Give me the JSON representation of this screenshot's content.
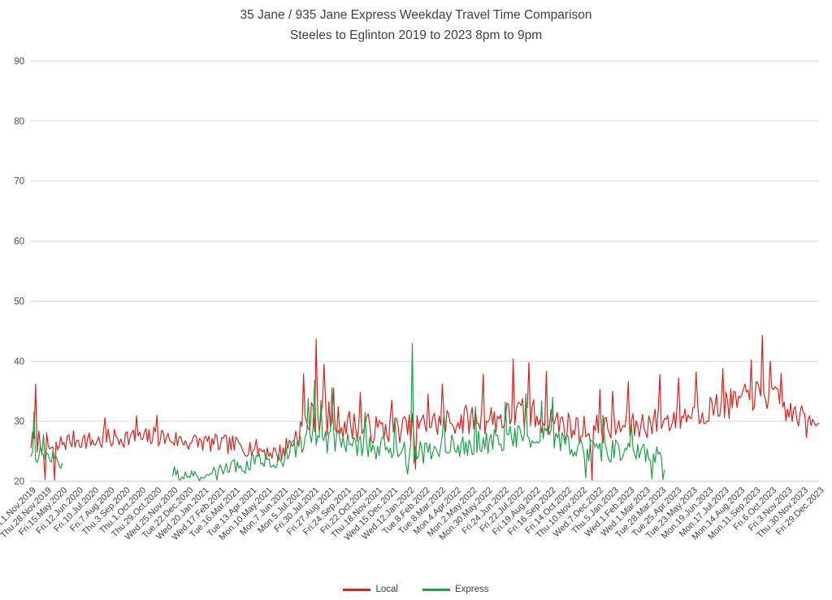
{
  "chart_data": {
    "type": "line",
    "title_line1": "35 Jane / 935 Jane Express Weekday Travel Time Comparison",
    "title_line2": "Steeles to Eglinton 2019 to 2023 8pm to 9pm",
    "xlabel": "",
    "ylabel": "",
    "grid": true,
    "y_axis": {
      "min": 20,
      "max": 90,
      "tick_step": 10,
      "ticks": [
        90,
        80,
        70,
        60,
        50,
        40,
        30,
        20
      ]
    },
    "x_axis": {
      "total_categories": 1000,
      "categories_per_tick": 20,
      "tick_labels": [
        "Fri.1.Nov.2019",
        "Thu.28.Nov.2019",
        "Fri.15.May.2020",
        "Fri.12.Jun.2020",
        "Fri.10.Jul.2020",
        "Fri.7.Aug.2020",
        "Thu.3.Sep.2020",
        "Thu.1.Oct.2020",
        "Thu.29.Oct.2020",
        "Wed.25.Nov.2020",
        "Tue.22.Dec.2020",
        "Wed.20.Jan.2021",
        "Wed.17.Feb.2021",
        "Tue.16.Mar.2021",
        "Tue.13.Apr.2021",
        "Mon.10.May.2021",
        "Mon.7.Jun.2021",
        "Mon.5.Jul.2021",
        "Fri.30.Jul.2021",
        "Fri.27.Aug.2021",
        "Fri.24.Sep.2021",
        "Fri.22.Oct.2021",
        "Thu.18.Nov.2021",
        "Wed.15.Dec.2021",
        "Wed.12.Jan.2022",
        "Tue.8.Feb.2022",
        "Tue.8.Mar.2022",
        "Mon.4.Apr.2022",
        "Mon.2.May.2022",
        "Mon.30.May.2022",
        "Fri.24.Jun.2022",
        "Fri.22.Jul.2022",
        "Fri.19.Aug.2022",
        "Fri.16.Sep.2022",
        "Fri.14.Oct.2022",
        "Thu.10.Nov.2022",
        "Wed.7.Dec.2022",
        "Thu.5.Jan.2023",
        "Wed.1.Feb.2023",
        "Wed.1.Mar.2023",
        "Tue.28.Mar.2023",
        "Tue.25.Apr.2023",
        "Tue.23.May.2023",
        "Mon.19.Jun.2023",
        "Mon.17.Jul.2023",
        "Mon.14.Aug.2023",
        "Mon.11.Sep.2023",
        "Fri.6.Oct.2023",
        "Fri.3.Nov.2023",
        "Thu.30.Nov.2023",
        "Fri.29.Dec.2023"
      ]
    },
    "legend": {
      "position": "bottom",
      "items": [
        {
          "label": "Local",
          "color": "#e3201b"
        },
        {
          "label": "Express",
          "color": "#19a448"
        }
      ]
    },
    "series": [
      {
        "name": "Local",
        "color": "#e3201b",
        "seed": 7,
        "step": 2,
        "segments": [
          {
            "range": [
              0,
              1000
            ],
            "anchors": [
              [
                0,
                26.5,
                1.8
              ],
              [
                10,
                26.8,
                2.2
              ],
              [
                20,
                26.0,
                2.2
              ],
              [
                30,
                25.0,
                2.4
              ],
              [
                40,
                26.5,
                1.6
              ],
              [
                60,
                27.0,
                1.6
              ],
              [
                80,
                26.6,
                1.6
              ],
              [
                100,
                27.0,
                1.8
              ],
              [
                120,
                27.4,
                1.7
              ],
              [
                140,
                27.0,
                1.8
              ],
              [
                160,
                27.5,
                1.8
              ],
              [
                180,
                27.0,
                1.6
              ],
              [
                200,
                26.6,
                1.6
              ],
              [
                220,
                26.5,
                1.6
              ],
              [
                240,
                26.2,
                1.6
              ],
              [
                260,
                26.0,
                1.6
              ],
              [
                280,
                25.6,
                1.6
              ],
              [
                300,
                25.0,
                1.6
              ],
              [
                315,
                24.6,
                1.6
              ],
              [
                330,
                26.5,
                2.2
              ],
              [
                345,
                29.0,
                2.6
              ],
              [
                360,
                31.0,
                3.0
              ],
              [
                380,
                30.4,
                2.8
              ],
              [
                400,
                29.6,
                2.6
              ],
              [
                420,
                29.0,
                2.6
              ],
              [
                440,
                28.6,
                2.4
              ],
              [
                460,
                28.8,
                2.4
              ],
              [
                480,
                28.8,
                2.4
              ],
              [
                500,
                29.4,
                2.5
              ],
              [
                520,
                29.8,
                2.5
              ],
              [
                540,
                30.0,
                2.5
              ],
              [
                560,
                30.4,
                2.6
              ],
              [
                580,
                30.4,
                2.6
              ],
              [
                600,
                30.6,
                2.8
              ],
              [
                620,
                31.0,
                3.0
              ],
              [
                640,
                31.0,
                3.0
              ],
              [
                660,
                30.4,
                2.8
              ],
              [
                680,
                29.2,
                2.6
              ],
              [
                700,
                28.6,
                2.5
              ],
              [
                720,
                28.6,
                2.5
              ],
              [
                740,
                29.0,
                2.5
              ],
              [
                760,
                29.0,
                2.5
              ],
              [
                780,
                29.6,
                2.5
              ],
              [
                800,
                30.0,
                2.5
              ],
              [
                820,
                30.6,
                2.5
              ],
              [
                840,
                31.4,
                2.5
              ],
              [
                860,
                32.0,
                2.5
              ],
              [
                880,
                32.6,
                2.5
              ],
              [
                900,
                33.4,
                2.5
              ],
              [
                920,
                34.4,
                2.6
              ],
              [
                940,
                34.0,
                2.6
              ],
              [
                960,
                31.6,
                2.2
              ],
              [
                980,
                30.6,
                1.9
              ],
              [
                1000,
                30.4,
                1.6
              ]
            ],
            "spikes": [
              [
                6,
                36.2
              ],
              [
                18,
                20.3
              ],
              [
                30,
                20.2
              ],
              [
                95,
                30.6
              ],
              [
                135,
                30.9
              ],
              [
                160,
                31.0
              ],
              [
                347,
                37.9
              ],
              [
                363,
                43.7
              ],
              [
                372,
                39.5
              ],
              [
                385,
                35.5
              ],
              [
                418,
                34.8
              ],
              [
                458,
                33.5
              ],
              [
                488,
                22.0
              ],
              [
                505,
                34.5
              ],
              [
                522,
                36.2
              ],
              [
                575,
                37.8
              ],
              [
                612,
                40.4
              ],
              [
                632,
                39.8
              ],
              [
                655,
                38.3
              ],
              [
                712,
                20.2
              ],
              [
                722,
                35.3
              ],
              [
                738,
                35.0
              ],
              [
                758,
                36.6
              ],
              [
                798,
                37.8
              ],
              [
                822,
                37.2
              ],
              [
                845,
                38.2
              ],
              [
                878,
                38.8
              ],
              [
                915,
                40.2
              ],
              [
                928,
                44.3
              ],
              [
                938,
                40.0
              ],
              [
                952,
                38.0
              ],
              [
                985,
                27.3
              ]
            ]
          }
        ]
      },
      {
        "name": "Express",
        "color": "#19a448",
        "seed": 13,
        "step": 2,
        "segments": [
          {
            "range": [
              0,
              40
            ],
            "anchors": [
              [
                0,
                25.0,
                1.6
              ],
              [
                12,
                24.4,
                1.6
              ],
              [
                24,
                24.0,
                1.5
              ],
              [
                40,
                23.0,
                1.5
              ]
            ],
            "spikes": [
              [
                4,
                31.6
              ],
              [
                16,
                27.8
              ]
            ]
          },
          {
            "range": [
              180,
              805
            ],
            "anchors": [
              [
                180,
                21.4,
                1.1
              ],
              [
                200,
                21.0,
                0.9
              ],
              [
                220,
                21.0,
                0.9
              ],
              [
                240,
                21.6,
                1.2
              ],
              [
                260,
                22.4,
                1.4
              ],
              [
                280,
                23.0,
                1.5
              ],
              [
                300,
                23.4,
                1.5
              ],
              [
                320,
                24.0,
                1.6
              ],
              [
                340,
                25.8,
                2.0
              ],
              [
                360,
                27.4,
                2.4
              ],
              [
                380,
                27.0,
                2.4
              ],
              [
                400,
                26.2,
                2.0
              ],
              [
                420,
                26.0,
                2.0
              ],
              [
                440,
                25.6,
                2.0
              ],
              [
                460,
                25.6,
                2.0
              ],
              [
                480,
                24.2,
                2.0
              ],
              [
                500,
                25.0,
                2.0
              ],
              [
                520,
                25.6,
                2.0
              ],
              [
                540,
                26.0,
                2.0
              ],
              [
                560,
                26.4,
                2.0
              ],
              [
                580,
                26.5,
                2.0
              ],
              [
                600,
                27.0,
                2.0
              ],
              [
                620,
                27.4,
                2.0
              ],
              [
                640,
                27.5,
                2.1
              ],
              [
                660,
                27.4,
                2.1
              ],
              [
                680,
                26.2,
                2.0
              ],
              [
                700,
                25.0,
                2.0
              ],
              [
                720,
                25.4,
                2.0
              ],
              [
                740,
                25.0,
                2.0
              ],
              [
                760,
                25.0,
                2.0
              ],
              [
                780,
                24.4,
                2.1
              ],
              [
                805,
                24.0,
                2.3
              ]
            ],
            "spikes": [
              [
                188,
                20.2
              ],
              [
                214,
                20.1
              ],
              [
                236,
                20.2
              ],
              [
                352,
                33.8
              ],
              [
                360,
                36.8
              ],
              [
                368,
                33.5
              ],
              [
                383,
                35.6
              ],
              [
                425,
                31.5
              ],
              [
                462,
                30.3
              ],
              [
                478,
                21.2
              ],
              [
                485,
                43.0
              ],
              [
                524,
                31.2
              ],
              [
                565,
                32.4
              ],
              [
                603,
                33.2
              ],
              [
                628,
                34.6
              ],
              [
                648,
                33.4
              ],
              [
                662,
                34.0
              ],
              [
                705,
                20.6
              ],
              [
                726,
                31.0
              ],
              [
                762,
                29.8
              ],
              [
                788,
                20.4
              ],
              [
                802,
                20.3
              ]
            ]
          }
        ]
      }
    ]
  }
}
